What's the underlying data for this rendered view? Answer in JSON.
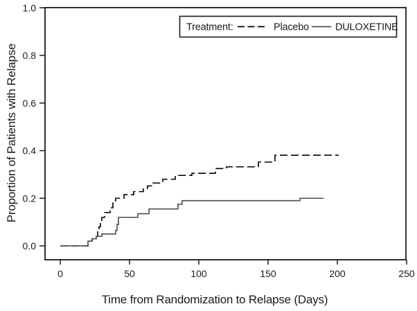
{
  "figure": {
    "background": "#ffffff",
    "axis_color": "#1a1a1a"
  },
  "chart_data": {
    "type": "line",
    "subtype": "step-after",
    "title": "",
    "xlabel": "Time from Randomization to Relapse (Days)",
    "ylabel": "Proportion of Patients with Relapse",
    "xlim": [
      -11,
      250
    ],
    "ylim": [
      0.0,
      1.0
    ],
    "x_ticks": [
      0,
      50,
      100,
      150,
      200,
      250
    ],
    "y_ticks": [
      0.0,
      0.2,
      0.4,
      0.6,
      0.8,
      1.0
    ],
    "y_tick_labels": [
      "0.0",
      "0.2",
      "0.4",
      "0.6",
      "0.8",
      "1.0"
    ],
    "grid": false,
    "legend": {
      "label": "Treatment:",
      "position": "top-right",
      "boxed": true
    },
    "series": [
      {
        "name": "Placebo",
        "line_style": "dashed",
        "color": "#000000",
        "end_day": 201,
        "points": [
          [
            0,
            0.0
          ],
          [
            20,
            0.02
          ],
          [
            23,
            0.03
          ],
          [
            26,
            0.04
          ],
          [
            27,
            0.06
          ],
          [
            28,
            0.08
          ],
          [
            29,
            0.1
          ],
          [
            30,
            0.12
          ],
          [
            32,
            0.14
          ],
          [
            36,
            0.16
          ],
          [
            38,
            0.18
          ],
          [
            40,
            0.2
          ],
          [
            46,
            0.215
          ],
          [
            53,
            0.228
          ],
          [
            60,
            0.242
          ],
          [
            63,
            0.252
          ],
          [
            66,
            0.264
          ],
          [
            74,
            0.28
          ],
          [
            83,
            0.296
          ],
          [
            95,
            0.305
          ],
          [
            112,
            0.325
          ],
          [
            120,
            0.332
          ],
          [
            143,
            0.352
          ],
          [
            155,
            0.381
          ]
        ]
      },
      {
        "name": "DULOXETINE",
        "line_style": "solid",
        "color": "#4d4d4d",
        "end_day": 190,
        "points": [
          [
            0,
            0.0
          ],
          [
            20,
            0.02
          ],
          [
            23,
            0.03
          ],
          [
            26,
            0.04
          ],
          [
            30,
            0.05
          ],
          [
            40,
            0.065
          ],
          [
            41,
            0.09
          ],
          [
            42,
            0.12
          ],
          [
            56,
            0.135
          ],
          [
            64,
            0.155
          ],
          [
            85,
            0.175
          ],
          [
            88,
            0.19
          ],
          [
            173,
            0.2
          ]
        ]
      }
    ]
  }
}
